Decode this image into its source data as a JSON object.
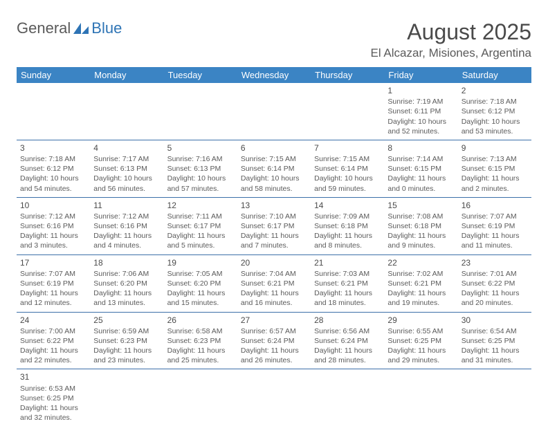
{
  "logo": {
    "left": "General",
    "right": "Blue"
  },
  "title": "August 2025",
  "location": "El Alcazar, Misiones, Argentina",
  "header_bg": "#3b84c4",
  "header_fg": "#ffffff",
  "divider_color": "#3b6fa8",
  "text_color": "#5a5a5a",
  "page_bg": "#ffffff",
  "day_headers": [
    "Sunday",
    "Monday",
    "Tuesday",
    "Wednesday",
    "Thursday",
    "Friday",
    "Saturday"
  ],
  "weeks": [
    [
      null,
      null,
      null,
      null,
      null,
      {
        "n": "1",
        "sr": "7:19 AM",
        "ss": "6:11 PM",
        "dh": "10",
        "dm": "52"
      },
      {
        "n": "2",
        "sr": "7:18 AM",
        "ss": "6:12 PM",
        "dh": "10",
        "dm": "53"
      }
    ],
    [
      {
        "n": "3",
        "sr": "7:18 AM",
        "ss": "6:12 PM",
        "dh": "10",
        "dm": "54"
      },
      {
        "n": "4",
        "sr": "7:17 AM",
        "ss": "6:13 PM",
        "dh": "10",
        "dm": "56"
      },
      {
        "n": "5",
        "sr": "7:16 AM",
        "ss": "6:13 PM",
        "dh": "10",
        "dm": "57"
      },
      {
        "n": "6",
        "sr": "7:15 AM",
        "ss": "6:14 PM",
        "dh": "10",
        "dm": "58"
      },
      {
        "n": "7",
        "sr": "7:15 AM",
        "ss": "6:14 PM",
        "dh": "10",
        "dm": "59"
      },
      {
        "n": "8",
        "sr": "7:14 AM",
        "ss": "6:15 PM",
        "dh": "11",
        "dm": "0"
      },
      {
        "n": "9",
        "sr": "7:13 AM",
        "ss": "6:15 PM",
        "dh": "11",
        "dm": "2"
      }
    ],
    [
      {
        "n": "10",
        "sr": "7:12 AM",
        "ss": "6:16 PM",
        "dh": "11",
        "dm": "3"
      },
      {
        "n": "11",
        "sr": "7:12 AM",
        "ss": "6:16 PM",
        "dh": "11",
        "dm": "4"
      },
      {
        "n": "12",
        "sr": "7:11 AM",
        "ss": "6:17 PM",
        "dh": "11",
        "dm": "5"
      },
      {
        "n": "13",
        "sr": "7:10 AM",
        "ss": "6:17 PM",
        "dh": "11",
        "dm": "7"
      },
      {
        "n": "14",
        "sr": "7:09 AM",
        "ss": "6:18 PM",
        "dh": "11",
        "dm": "8"
      },
      {
        "n": "15",
        "sr": "7:08 AM",
        "ss": "6:18 PM",
        "dh": "11",
        "dm": "9"
      },
      {
        "n": "16",
        "sr": "7:07 AM",
        "ss": "6:19 PM",
        "dh": "11",
        "dm": "11"
      }
    ],
    [
      {
        "n": "17",
        "sr": "7:07 AM",
        "ss": "6:19 PM",
        "dh": "11",
        "dm": "12"
      },
      {
        "n": "18",
        "sr": "7:06 AM",
        "ss": "6:20 PM",
        "dh": "11",
        "dm": "13"
      },
      {
        "n": "19",
        "sr": "7:05 AM",
        "ss": "6:20 PM",
        "dh": "11",
        "dm": "15"
      },
      {
        "n": "20",
        "sr": "7:04 AM",
        "ss": "6:21 PM",
        "dh": "11",
        "dm": "16"
      },
      {
        "n": "21",
        "sr": "7:03 AM",
        "ss": "6:21 PM",
        "dh": "11",
        "dm": "18"
      },
      {
        "n": "22",
        "sr": "7:02 AM",
        "ss": "6:21 PM",
        "dh": "11",
        "dm": "19"
      },
      {
        "n": "23",
        "sr": "7:01 AM",
        "ss": "6:22 PM",
        "dh": "11",
        "dm": "20"
      }
    ],
    [
      {
        "n": "24",
        "sr": "7:00 AM",
        "ss": "6:22 PM",
        "dh": "11",
        "dm": "22"
      },
      {
        "n": "25",
        "sr": "6:59 AM",
        "ss": "6:23 PM",
        "dh": "11",
        "dm": "23"
      },
      {
        "n": "26",
        "sr": "6:58 AM",
        "ss": "6:23 PM",
        "dh": "11",
        "dm": "25"
      },
      {
        "n": "27",
        "sr": "6:57 AM",
        "ss": "6:24 PM",
        "dh": "11",
        "dm": "26"
      },
      {
        "n": "28",
        "sr": "6:56 AM",
        "ss": "6:24 PM",
        "dh": "11",
        "dm": "28"
      },
      {
        "n": "29",
        "sr": "6:55 AM",
        "ss": "6:25 PM",
        "dh": "11",
        "dm": "29"
      },
      {
        "n": "30",
        "sr": "6:54 AM",
        "ss": "6:25 PM",
        "dh": "11",
        "dm": "31"
      }
    ],
    [
      {
        "n": "31",
        "sr": "6:53 AM",
        "ss": "6:25 PM",
        "dh": "11",
        "dm": "32"
      },
      null,
      null,
      null,
      null,
      null,
      null
    ]
  ],
  "labels": {
    "sunrise": "Sunrise:",
    "sunset": "Sunset:",
    "daylight_prefix": "Daylight:",
    "hours_word": "hours",
    "and_word": "and",
    "minutes_word": "minutes."
  }
}
